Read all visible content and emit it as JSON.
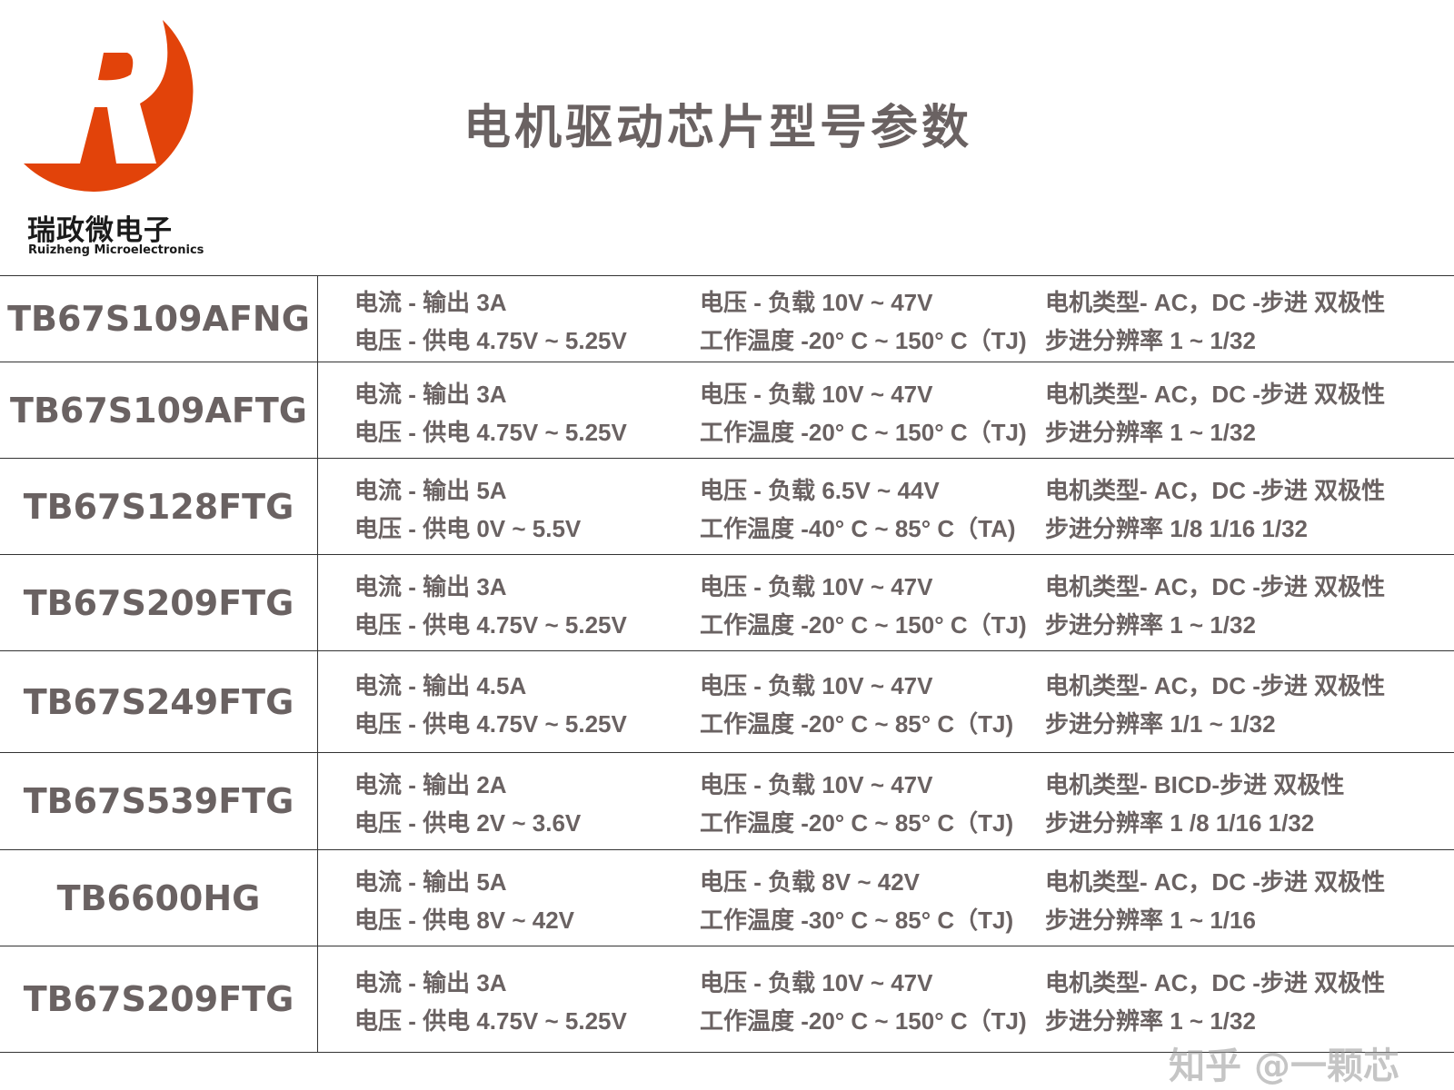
{
  "brand": {
    "name_cn": "瑞政微电子",
    "name_en": "Ruizheng Microelectronics",
    "logo_color": "#e2430a"
  },
  "title": "电机驱动芯片型号参数",
  "rows": [
    {
      "model": "TB67S109AFNG",
      "current": "电流 - 输出 3A",
      "supply": "电压 - 供电 4.75V ~ 5.25V",
      "load": "电压 - 负载 10V ~ 47V",
      "temp": "工作温度 -20° C ~ 150° C（TJ)",
      "motor": "电机类型- AC，DC -步进 双极性",
      "step": "步进分辨率 1 ~ 1/32"
    },
    {
      "model": "TB67S109AFTG",
      "current": "电流 - 输出 3A",
      "supply": "电压 - 供电 4.75V ~ 5.25V",
      "load": "电压 - 负载 10V ~ 47V",
      "temp": "工作温度 -20° C ~ 150° C（TJ)",
      "motor": "电机类型- AC，DC -步进 双极性",
      "step": "步进分辨率 1 ~ 1/32"
    },
    {
      "model": "TB67S128FTG",
      "current": "电流 - 输出 5A",
      "supply": "电压 - 供电 0V ~ 5.5V",
      "load": "电压 - 负载 6.5V ~ 44V",
      "temp": "工作温度 -40° C ~ 85° C（TA)",
      "motor": "电机类型- AC，DC -步进 双极性",
      "step": "步进分辨率  1/8  1/16  1/32"
    },
    {
      "model": "TB67S209FTG",
      "current": "电流 - 输出 3A",
      "supply": "电压 - 供电 4.75V ~ 5.25V",
      "load": "电压 - 负载 10V ~ 47V",
      "temp": "工作温度 -20° C ~ 150° C（TJ)",
      "motor": "电机类型- AC，DC -步进 双极性",
      "step": "步进分辨率 1 ~ 1/32"
    },
    {
      "model": "TB67S249FTG",
      "current": "电流 - 输出 4.5A",
      "supply": "电压 - 供电 4.75V ~ 5.25V",
      "load": "电压 - 负载 10V ~ 47V",
      "temp": "工作温度 -20° C ~ 85° C（TJ)",
      "motor": "电机类型- AC，DC -步进 双极性",
      "step": "步进分辨率 1/1 ~ 1/32"
    },
    {
      "model": "TB67S539FTG",
      "current": "电流 - 输出 2A",
      "supply": "电压 - 供电 2V ~ 3.6V",
      "load": "电压 - 负载 10V ~ 47V",
      "temp": "工作温度 -20° C ~ 85° C（TJ)",
      "motor": "电机类型- BICD-步进 双极性",
      "step": "步进分辨率 1 /8  1/16  1/32"
    },
    {
      "model": "TB6600HG",
      "current": "电流 - 输出 5A",
      "supply": "电压 - 供电 8V ~ 42V",
      "load": "电压 - 负载 8V ~ 42V",
      "temp": "工作温度 -30° C ~ 85° C（TJ)",
      "motor": "电机类型- AC，DC -步进 双极性",
      "step": "步进分辨率 1 ~ 1/16"
    },
    {
      "model": "TB67S209FTG",
      "current": "电流 - 输出 3A",
      "supply": "电压 - 供电 4.75V ~ 5.25V",
      "load": "电压 - 负载 10V ~ 47V",
      "temp": "工作温度 -20° C ~ 150° C（TJ)",
      "motor": "电机类型- AC，DC -步进 双极性",
      "step": "步进分辨率 1 ~ 1/32"
    }
  ],
  "watermark": "知乎 @一颗芯"
}
